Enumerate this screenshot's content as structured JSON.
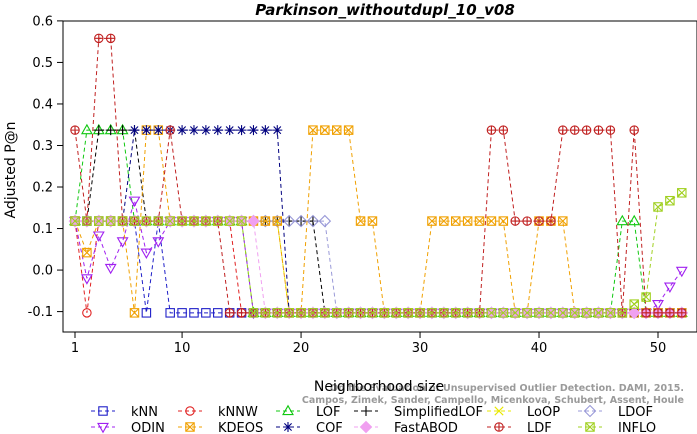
{
  "chart_data": {
    "type": "line",
    "title": "Parkinson_withoutdupl_10_v08",
    "xlabel": "Neighborhood size",
    "ylabel": "Adjusted P@n",
    "xlim": [
      1,
      52
    ],
    "ylim": [
      -0.125,
      0.6
    ],
    "x_ticks": [
      1,
      10,
      20,
      30,
      40,
      50
    ],
    "y_ticks": [
      -0.1,
      0.0,
      0.1,
      0.2,
      0.3,
      0.4,
      0.5,
      0.6
    ],
    "x": [
      1,
      2,
      3,
      4,
      5,
      6,
      7,
      8,
      9,
      10,
      11,
      12,
      13,
      14,
      15,
      16,
      17,
      18,
      19,
      20,
      21,
      22,
      23,
      24,
      25,
      26,
      27,
      28,
      29,
      30,
      31,
      32,
      33,
      34,
      35,
      36,
      37,
      38,
      39,
      40,
      41,
      42,
      43,
      44,
      45,
      46,
      47,
      48,
      49,
      50,
      51,
      52
    ],
    "watermark": [
      "Campos, Zimek, Sander, Campello, Micenkova, Schubert, Assent, Houle",
      "On the Evaluation of Unsupervised Outlier Detection. DAMI, 2015."
    ],
    "legend_position": "bottom",
    "series": [
      {
        "name": "kNN",
        "color": "#1f1fc8",
        "marker": "square",
        "values": [
          0.118,
          0.118,
          0.118,
          0.118,
          0.118,
          0.118,
          -0.103,
          0.118,
          -0.103,
          -0.103,
          -0.103,
          -0.103,
          -0.103,
          -0.103,
          -0.103,
          -0.103,
          -0.103,
          -0.103,
          -0.103,
          -0.103,
          -0.103,
          -0.103,
          -0.103,
          -0.103,
          -0.103,
          -0.103,
          -0.103,
          -0.103,
          -0.103,
          -0.103,
          -0.103,
          -0.103,
          -0.103,
          -0.103,
          -0.103,
          -0.103,
          -0.103,
          -0.103,
          -0.103,
          -0.103,
          -0.103,
          -0.103,
          -0.103,
          -0.103,
          -0.103,
          -0.103,
          -0.103,
          -0.103,
          -0.103,
          -0.103,
          -0.103,
          -0.103
        ]
      },
      {
        "name": "kNNW",
        "color": "#e02020",
        "marker": "circle",
        "values": [
          0.118,
          -0.103,
          0.118,
          0.118,
          0.118,
          0.118,
          0.118,
          0.118,
          0.118,
          0.118,
          0.118,
          0.118,
          0.118,
          0.118,
          -0.103,
          -0.103,
          -0.103,
          -0.103,
          -0.103,
          -0.103,
          -0.103,
          -0.103,
          -0.103,
          -0.103,
          -0.103,
          -0.103,
          -0.103,
          -0.103,
          -0.103,
          -0.103,
          -0.103,
          -0.103,
          -0.103,
          -0.103,
          -0.103,
          -0.103,
          -0.103,
          -0.103,
          -0.103,
          -0.103,
          -0.103,
          -0.103,
          -0.103,
          -0.103,
          -0.103,
          -0.103,
          -0.103,
          -0.103,
          -0.103,
          -0.103,
          -0.103,
          -0.103
        ]
      },
      {
        "name": "LOF",
        "color": "#10c810",
        "marker": "triangle",
        "values": [
          0.118,
          0.337,
          0.337,
          0.337,
          0.337,
          0.118,
          0.118,
          0.118,
          0.118,
          0.118,
          0.118,
          0.118,
          0.118,
          0.118,
          0.118,
          -0.103,
          -0.103,
          -0.103,
          -0.103,
          -0.103,
          -0.103,
          -0.103,
          -0.103,
          -0.103,
          -0.103,
          -0.103,
          -0.103,
          -0.103,
          -0.103,
          -0.103,
          -0.103,
          -0.103,
          -0.103,
          -0.103,
          -0.103,
          -0.103,
          -0.103,
          -0.103,
          -0.103,
          -0.103,
          -0.103,
          -0.103,
          -0.103,
          -0.103,
          -0.103,
          -0.103,
          0.118,
          0.118,
          -0.103,
          -0.103,
          -0.103,
          -0.103
        ]
      },
      {
        "name": "SimplifiedLOF",
        "color": "#000000",
        "marker": "plus",
        "values": [
          0.118,
          0.118,
          0.337,
          0.337,
          0.337,
          0.337,
          0.118,
          0.118,
          0.118,
          0.118,
          0.118,
          0.118,
          0.118,
          0.118,
          0.118,
          0.118,
          0.118,
          0.118,
          0.118,
          0.118,
          0.118,
          -0.103,
          -0.103,
          -0.103,
          -0.103,
          -0.103,
          -0.103,
          -0.103,
          -0.103,
          -0.103,
          -0.103,
          -0.103,
          -0.103,
          -0.103,
          -0.103,
          -0.103,
          -0.103,
          -0.103,
          -0.103,
          -0.103,
          -0.103,
          -0.103,
          -0.103,
          -0.103,
          -0.103,
          -0.103,
          -0.103,
          -0.103,
          -0.103,
          -0.103,
          -0.103,
          -0.103
        ]
      },
      {
        "name": "LoOP",
        "color": "#e8e800",
        "marker": "x",
        "values": [
          0.118,
          0.118,
          0.118,
          0.118,
          0.118,
          0.118,
          0.118,
          0.118,
          0.118,
          0.118,
          0.118,
          0.118,
          0.118,
          0.118,
          0.118,
          0.118,
          0.118,
          0.118,
          -0.103,
          -0.103,
          -0.103,
          -0.103,
          -0.103,
          -0.103,
          -0.103,
          -0.103,
          -0.103,
          -0.103,
          -0.103,
          -0.103,
          -0.103,
          -0.103,
          -0.103,
          -0.103,
          -0.103,
          -0.103,
          -0.103,
          -0.103,
          -0.103,
          -0.103,
          -0.103,
          -0.103,
          -0.103,
          -0.103,
          -0.103,
          -0.103,
          -0.103,
          -0.103,
          -0.103,
          -0.103,
          -0.103,
          -0.103
        ]
      },
      {
        "name": "LDOF",
        "color": "#9a9ad8",
        "marker": "diamond",
        "values": [
          0.118,
          0.118,
          0.118,
          0.118,
          0.118,
          0.118,
          0.118,
          0.118,
          0.118,
          0.118,
          0.118,
          0.118,
          0.118,
          0.118,
          0.118,
          0.118,
          0.118,
          0.118,
          0.118,
          0.118,
          0.118,
          0.118,
          -0.103,
          -0.103,
          -0.103,
          -0.103,
          -0.103,
          -0.103,
          -0.103,
          -0.103,
          -0.103,
          -0.103,
          -0.103,
          -0.103,
          -0.103,
          -0.103,
          -0.103,
          -0.103,
          -0.103,
          -0.103,
          -0.103,
          -0.103,
          -0.103,
          -0.103,
          -0.103,
          -0.103,
          -0.103,
          -0.103,
          -0.103,
          -0.103,
          -0.103,
          -0.103
        ]
      },
      {
        "name": "ODIN",
        "color": "#a020f0",
        "marker": "triangle-down",
        "values": [
          0.118,
          -0.02,
          0.083,
          0.005,
          0.069,
          0.167,
          0.042,
          0.069,
          0.118,
          0.118,
          0.118,
          0.118,
          0.118,
          0.118,
          0.118,
          -0.103,
          -0.103,
          -0.103,
          -0.103,
          -0.103,
          -0.103,
          -0.103,
          -0.103,
          -0.103,
          -0.103,
          -0.103,
          -0.103,
          -0.103,
          -0.103,
          -0.103,
          -0.103,
          -0.103,
          -0.103,
          -0.103,
          -0.103,
          -0.103,
          -0.103,
          -0.103,
          -0.103,
          -0.103,
          -0.103,
          -0.103,
          -0.103,
          -0.103,
          -0.103,
          -0.103,
          -0.103,
          -0.103,
          -0.103,
          -0.082,
          -0.04,
          -0.002
        ]
      },
      {
        "name": "KDEOS",
        "color": "#f0a000",
        "marker": "boxx",
        "values": [
          0.118,
          0.042,
          0.118,
          0.118,
          0.118,
          -0.103,
          0.337,
          0.337,
          0.118,
          0.118,
          0.118,
          0.118,
          0.118,
          0.118,
          0.118,
          0.118,
          0.118,
          0.118,
          -0.103,
          -0.103,
          0.337,
          0.337,
          0.337,
          0.337,
          0.118,
          0.118,
          -0.103,
          -0.103,
          -0.103,
          -0.103,
          0.118,
          0.118,
          0.118,
          0.118,
          0.118,
          0.118,
          0.118,
          -0.103,
          -0.103,
          0.118,
          0.118,
          0.118,
          -0.103,
          -0.103,
          -0.103,
          -0.103,
          -0.103,
          -0.103,
          -0.103,
          -0.103,
          -0.103,
          -0.103
        ]
      },
      {
        "name": "COF",
        "color": "#00007f",
        "marker": "star",
        "values": [
          0.118,
          0.118,
          0.118,
          0.118,
          0.118,
          0.337,
          0.337,
          0.337,
          0.337,
          0.337,
          0.337,
          0.337,
          0.337,
          0.337,
          0.337,
          0.337,
          0.337,
          0.337,
          -0.103,
          -0.103,
          -0.103,
          -0.103,
          -0.103,
          -0.103,
          -0.103,
          -0.103,
          -0.103,
          -0.103,
          -0.103,
          -0.103,
          -0.103,
          -0.103,
          -0.103,
          -0.103,
          -0.103,
          -0.103,
          -0.103,
          -0.103,
          -0.103,
          -0.103,
          -0.103,
          -0.103,
          -0.103,
          -0.103,
          -0.103,
          -0.103,
          -0.103,
          -0.103,
          -0.103,
          -0.103,
          -0.103,
          -0.103
        ]
      },
      {
        "name": "FastABOD",
        "color": "#f0a0f0",
        "marker": "diamond-filled",
        "values": [
          0.118,
          0.118,
          0.118,
          0.118,
          0.118,
          0.118,
          0.118,
          0.118,
          0.118,
          0.118,
          0.118,
          0.118,
          0.118,
          0.118,
          0.118,
          0.118,
          -0.103,
          -0.103,
          -0.103,
          -0.103,
          -0.103,
          -0.103,
          -0.103,
          -0.103,
          -0.103,
          -0.103,
          -0.103,
          -0.103,
          -0.103,
          -0.103,
          -0.103,
          -0.103,
          -0.103,
          -0.103,
          -0.103,
          -0.103,
          -0.103,
          -0.103,
          -0.103,
          -0.103,
          -0.103,
          -0.103,
          -0.103,
          -0.103,
          -0.103,
          -0.103,
          -0.103,
          -0.103,
          -0.103,
          -0.103,
          -0.103,
          -0.103
        ]
      },
      {
        "name": "LDF",
        "color": "#c02020",
        "marker": "circle-plus",
        "values": [
          0.337,
          0.118,
          0.558,
          0.558,
          0.118,
          0.118,
          0.118,
          0.118,
          0.337,
          0.118,
          0.118,
          0.118,
          0.118,
          -0.103,
          -0.103,
          -0.103,
          -0.103,
          -0.103,
          -0.103,
          -0.103,
          -0.103,
          -0.103,
          -0.103,
          -0.103,
          -0.103,
          -0.103,
          -0.103,
          -0.103,
          -0.103,
          -0.103,
          -0.103,
          -0.103,
          -0.103,
          -0.103,
          -0.103,
          0.337,
          0.337,
          0.118,
          0.118,
          0.118,
          0.118,
          0.337,
          0.337,
          0.337,
          0.337,
          0.337,
          -0.103,
          0.337,
          -0.103,
          -0.103,
          -0.103,
          -0.103
        ]
      },
      {
        "name": "INFLO",
        "color": "#a0d020",
        "marker": "boxx",
        "values": [
          0.118,
          0.118,
          0.118,
          0.118,
          0.118,
          0.118,
          0.118,
          0.118,
          0.118,
          0.118,
          0.118,
          0.118,
          0.118,
          0.118,
          0.118,
          -0.103,
          -0.103,
          -0.103,
          -0.103,
          -0.103,
          -0.103,
          -0.103,
          -0.103,
          -0.103,
          -0.103,
          -0.103,
          -0.103,
          -0.103,
          -0.103,
          -0.103,
          -0.103,
          -0.103,
          -0.103,
          -0.103,
          -0.103,
          -0.103,
          -0.103,
          -0.103,
          -0.103,
          -0.103,
          -0.103,
          -0.103,
          -0.103,
          -0.103,
          -0.103,
          -0.103,
          -0.103,
          -0.082,
          -0.065,
          0.152,
          0.167,
          0.186
        ]
      }
    ]
  }
}
